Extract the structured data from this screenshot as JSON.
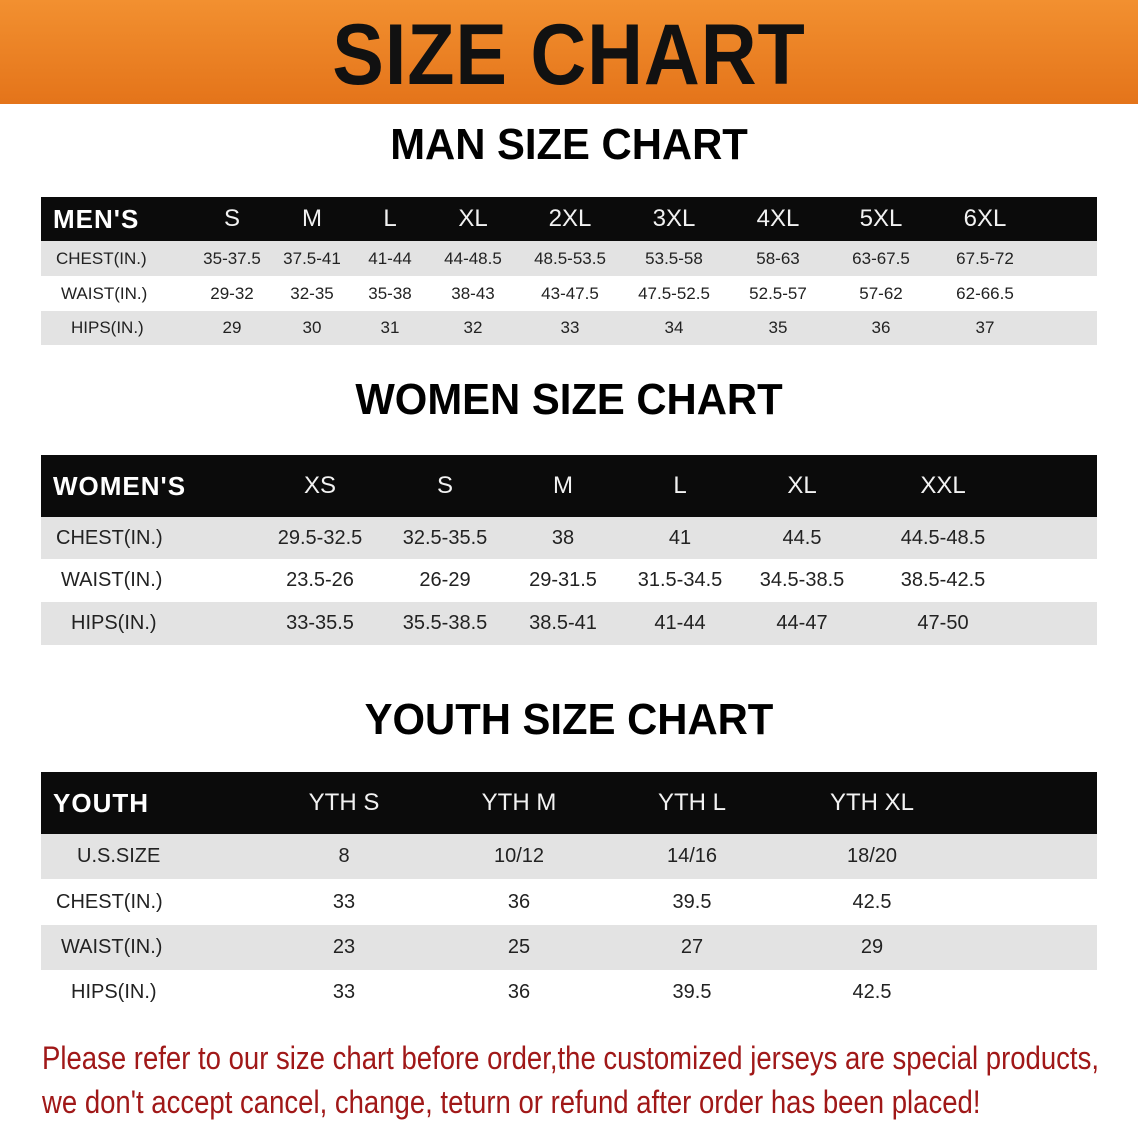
{
  "banner": {
    "title": "SIZE CHART",
    "color": "#e97d22"
  },
  "men": {
    "title": "MAN SIZE CHART",
    "header_label": "MEN'S",
    "sizes": [
      "S",
      "M",
      "L",
      "XL",
      "2XL",
      "3XL",
      "4XL",
      "5XL",
      "6XL"
    ],
    "rows": [
      {
        "label": "CHEST(IN.)",
        "values": [
          "35-37.5",
          "37.5-41",
          "41-44",
          "44-48.5",
          "48.5-53.5",
          "53.5-58",
          "58-63",
          "63-67.5",
          "67.5-72"
        ]
      },
      {
        "label": "WAIST(IN.)",
        "values": [
          "29-32",
          "32-35",
          "35-38",
          "38-43",
          "43-47.5",
          "47.5-52.5",
          "52.5-57",
          "57-62",
          "62-66.5"
        ]
      },
      {
        "label": "HIPS(IN.)",
        "values": [
          "29",
          "30",
          "31",
          "32",
          "33",
          "34",
          "35",
          "36",
          "37"
        ]
      }
    ]
  },
  "women": {
    "title": "WOMEN SIZE CHART",
    "header_label": "WOMEN'S",
    "sizes": [
      "XS",
      "S",
      "M",
      "L",
      "XL",
      "XXL"
    ],
    "rows": [
      {
        "label": "CHEST(IN.)",
        "values": [
          "29.5-32.5",
          "32.5-35.5",
          "38",
          "41",
          "44.5",
          "44.5-48.5"
        ]
      },
      {
        "label": "WAIST(IN.)",
        "values": [
          "23.5-26",
          "26-29",
          "29-31.5",
          "31.5-34.5",
          "34.5-38.5",
          "38.5-42.5"
        ]
      },
      {
        "label": "HIPS(IN.)",
        "values": [
          "33-35.5",
          "35.5-38.5",
          "38.5-41",
          "41-44",
          "44-47",
          "47-50"
        ]
      }
    ]
  },
  "youth": {
    "title": "YOUTH SIZE CHART",
    "header_label": "YOUTH",
    "sizes": [
      "YTH S",
      "YTH M",
      "YTH L",
      "YTH XL"
    ],
    "rows": [
      {
        "label": "U.S.SIZE",
        "values": [
          "8",
          "10/12",
          "14/16",
          "18/20"
        ]
      },
      {
        "label": "CHEST(IN.)",
        "values": [
          "33",
          "36",
          "39.5",
          "42.5"
        ]
      },
      {
        "label": "WAIST(IN.)",
        "values": [
          "23",
          "25",
          "27",
          "29"
        ]
      },
      {
        "label": "HIPS(IN.)",
        "values": [
          "33",
          "36",
          "39.5",
          "42.5"
        ]
      }
    ]
  },
  "notice": {
    "line1": "Please refer to our size chart before order,the customized jerseys are special products,",
    "line2": "we don't accept cancel, change, teturn or refund after order has been placed!",
    "color": "#a01818"
  }
}
